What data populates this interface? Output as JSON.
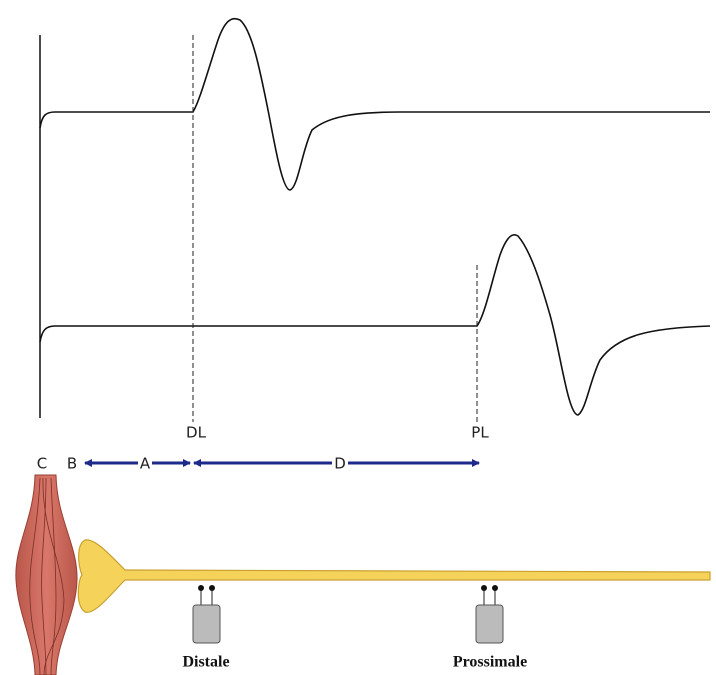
{
  "labels": {
    "dl": "DL",
    "pl": "PL",
    "c": "C",
    "b": "B",
    "a": "A",
    "d": "D"
  },
  "electrodes": {
    "distal": "Distale",
    "proximal": "Prossimale"
  }
}
